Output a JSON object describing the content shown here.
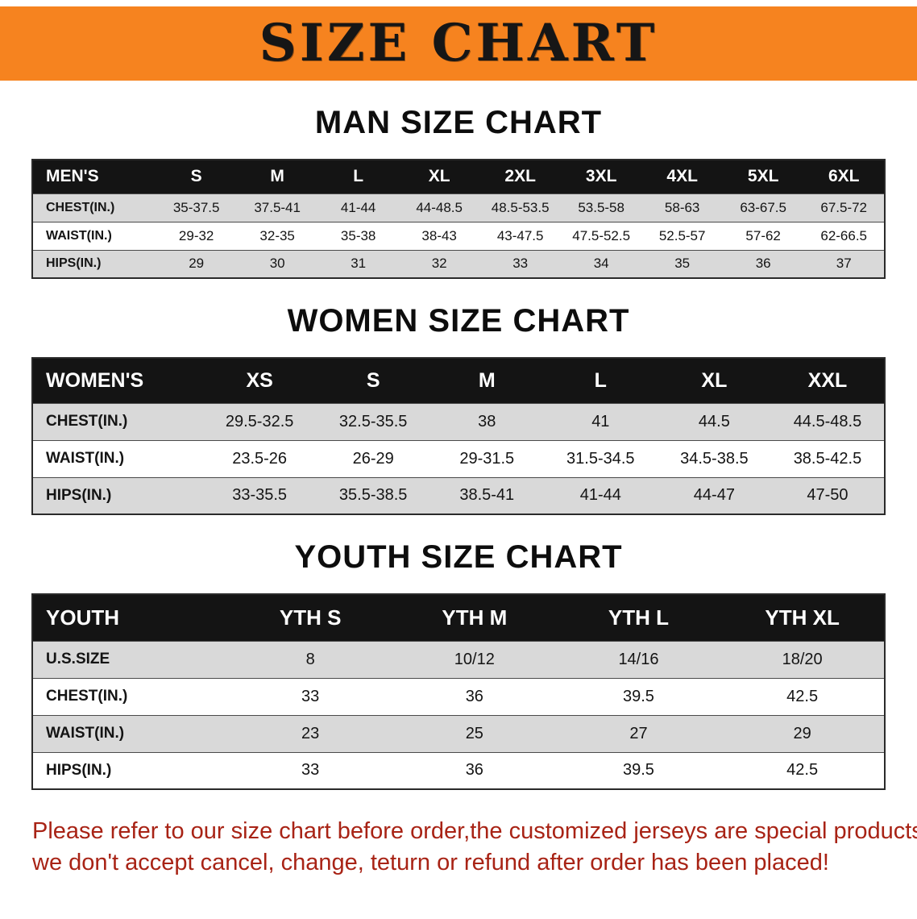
{
  "colors": {
    "banner_bg": "#f6831f",
    "header_bg": "#141414",
    "row_alt": "#d9d9d9",
    "note_red": "#a82315"
  },
  "banner": {
    "title": "SIZE CHART"
  },
  "sections": [
    {
      "id": "men",
      "heading": "MAN SIZE CHART",
      "table": {
        "header": [
          "MEN'S",
          "S",
          "M",
          "L",
          "XL",
          "2XL",
          "3XL",
          "4XL",
          "5XL",
          "6XL"
        ],
        "rows": [
          [
            "CHEST(IN.)",
            "35-37.5",
            "37.5-41",
            "41-44",
            "44-48.5",
            "48.5-53.5",
            "53.5-58",
            "58-63",
            "63-67.5",
            "67.5-72"
          ],
          [
            "WAIST(IN.)",
            "29-32",
            "32-35",
            "35-38",
            "38-43",
            "43-47.5",
            "47.5-52.5",
            "52.5-57",
            "57-62",
            "62-66.5"
          ],
          [
            "HIPS(IN.)",
            "29",
            "30",
            "31",
            "32",
            "33",
            "34",
            "35",
            "36",
            "37"
          ]
        ]
      }
    },
    {
      "id": "women",
      "heading": "WOMEN SIZE CHART",
      "table": {
        "header": [
          "WOMEN'S",
          "XS",
          "S",
          "M",
          "L",
          "XL",
          "XXL"
        ],
        "rows": [
          [
            "CHEST(IN.)",
            "29.5-32.5",
            "32.5-35.5",
            "38",
            "41",
            "44.5",
            "44.5-48.5"
          ],
          [
            "WAIST(IN.)",
            "23.5-26",
            "26-29",
            "29-31.5",
            "31.5-34.5",
            "34.5-38.5",
            "38.5-42.5"
          ],
          [
            "HIPS(IN.)",
            "33-35.5",
            "35.5-38.5",
            "38.5-41",
            "41-44",
            "44-47",
            "47-50"
          ]
        ]
      }
    },
    {
      "id": "youth",
      "heading": "YOUTH SIZE CHART",
      "table": {
        "header": [
          "YOUTH",
          "YTH S",
          "YTH M",
          "YTH L",
          "YTH XL"
        ],
        "rows": [
          [
            "U.S.SIZE",
            "8",
            "10/12",
            "14/16",
            "18/20"
          ],
          [
            "CHEST(IN.)",
            "33",
            "36",
            "39.5",
            "42.5"
          ],
          [
            "WAIST(IN.)",
            "23",
            "25",
            "27",
            "29"
          ],
          [
            "HIPS(IN.)",
            "33",
            "36",
            "39.5",
            "42.5"
          ]
        ]
      }
    }
  ],
  "note": {
    "lines": [
      "Please refer to our size chart before order,the customized jerseys are special products,",
      "we don't accept cancel, change, teturn or refund after order has been placed!"
    ]
  }
}
